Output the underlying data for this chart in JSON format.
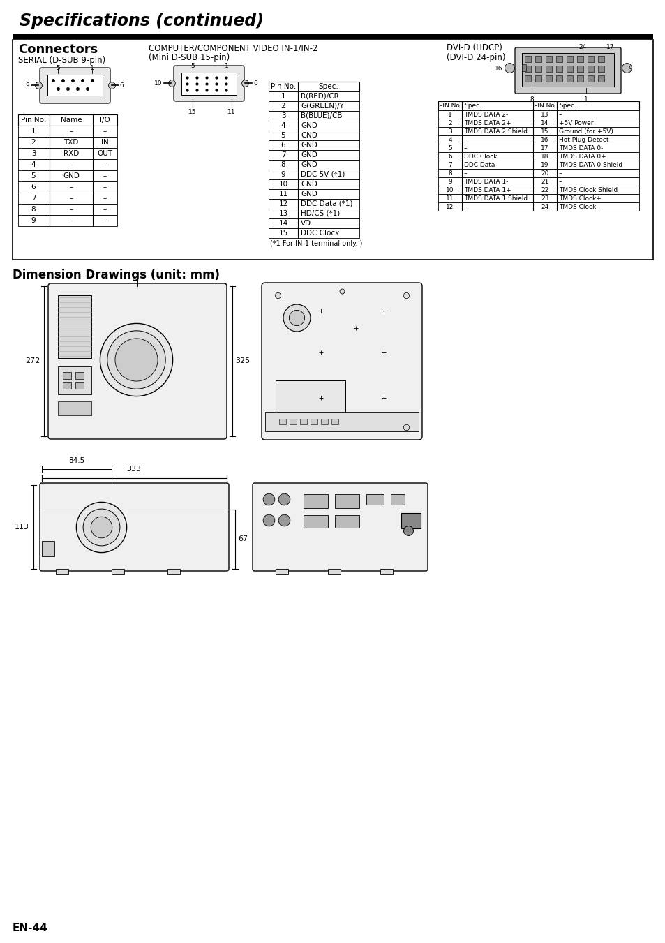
{
  "title": "Specifications (continued)",
  "page_label": "EN-44",
  "bg_color": "#ffffff",
  "section_title": "Connectors",
  "serial_label": "SERIAL (D-SUB 9-pin)",
  "computer_label1": "COMPUTER/COMPONENT VIDEO IN-1/IN-2",
  "computer_label2": "(Mini D-SUB 15-pin)",
  "dvi_label1": "DVI-D (HDCP)",
  "dvi_label2": "(DVI-D 24-pin)",
  "dim_title": "Dimension Drawings (unit: mm)",
  "serial_table_headers": [
    "Pin No.",
    "Name",
    "I/O"
  ],
  "serial_table_rows": [
    [
      "1",
      "–",
      "–"
    ],
    [
      "2",
      "TXD",
      "IN"
    ],
    [
      "3",
      "RXD",
      "OUT"
    ],
    [
      "4",
      "–",
      "–"
    ],
    [
      "5",
      "GND",
      "–"
    ],
    [
      "6",
      "–",
      "–"
    ],
    [
      "7",
      "–",
      "–"
    ],
    [
      "8",
      "–",
      "–"
    ],
    [
      "9",
      "–",
      "–"
    ]
  ],
  "comp_table_headers": [
    "Pin No.",
    "Spec."
  ],
  "comp_table_rows": [
    [
      "1",
      "R(RED)/CR"
    ],
    [
      "2",
      "G(GREEN)/Y"
    ],
    [
      "3",
      "B(BLUE)/CB"
    ],
    [
      "4",
      "GND"
    ],
    [
      "5",
      "GND"
    ],
    [
      "6",
      "GND"
    ],
    [
      "7",
      "GND"
    ],
    [
      "8",
      "GND"
    ],
    [
      "9",
      "DDC 5V (*1)"
    ],
    [
      "10",
      "GND"
    ],
    [
      "11",
      "GND"
    ],
    [
      "12",
      "DDC Data (*1)"
    ],
    [
      "13",
      "HD/CS (*1)"
    ],
    [
      "14",
      "VD"
    ],
    [
      "15",
      "DDC Clock"
    ]
  ],
  "comp_footnote": "(*1 For IN-1 terminal only. )",
  "dvi_table_headers": [
    "PIN No.",
    "Spec.",
    "PIN No.",
    "Spec."
  ],
  "dvi_table_rows": [
    [
      "1",
      "TMDS DATA 2-",
      "13",
      "–"
    ],
    [
      "2",
      "TMDS DATA 2+",
      "14",
      "+5V Power"
    ],
    [
      "3",
      "TMDS DATA 2 Shield",
      "15",
      "Ground (for +5V)"
    ],
    [
      "4",
      "–",
      "16",
      "Hot Plug Detect"
    ],
    [
      "5",
      "–",
      "17",
      "TMDS DATA 0-"
    ],
    [
      "6",
      "DDC Clock",
      "18",
      "TMDS DATA 0+"
    ],
    [
      "7",
      "DDC Data",
      "19",
      "TMDS DATA 0 Shield"
    ],
    [
      "8",
      "–",
      "20",
      "–"
    ],
    [
      "9",
      "TMDS DATA 1-",
      "21",
      "–"
    ],
    [
      "10",
      "TMDS DATA 1+",
      "22",
      "TMDS Clock Shield"
    ],
    [
      "11",
      "TMDS DATA 1 Shield",
      "23",
      "TMDS Clock+"
    ],
    [
      "12",
      "–",
      "24",
      "TMDS Clock-"
    ]
  ],
  "dim_333": "333",
  "dim_84_5": "84.5",
  "dim_113": "113",
  "dim_67": "67",
  "dim_272": "272",
  "dim_325": "325"
}
